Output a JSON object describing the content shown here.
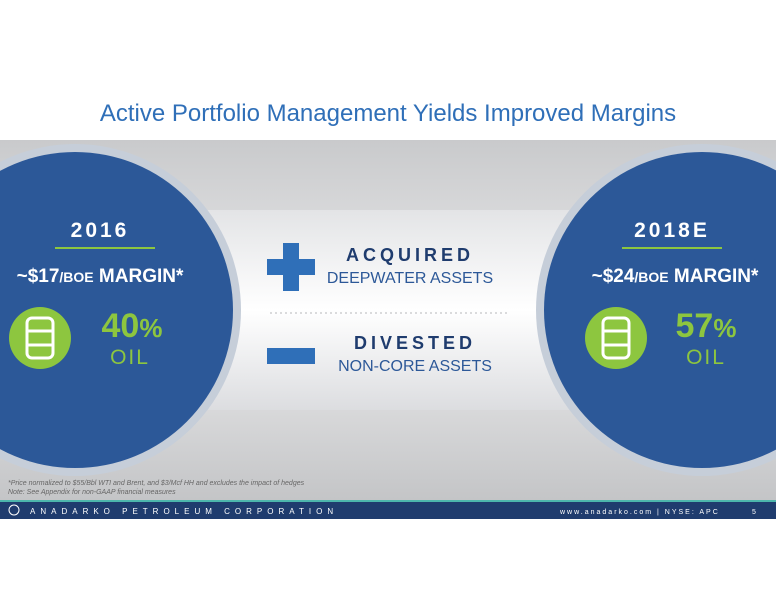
{
  "header": {
    "title": "Active Portfolio Management Yields Improved Margins"
  },
  "left": {
    "year": "2016",
    "margin": [
      "~$17",
      "/BOE",
      " MARGIN*"
    ],
    "percent": [
      "40",
      "%"
    ],
    "label": "OIL"
  },
  "middle": {
    "acquired": {
      "title": "ACQUIRED",
      "subtitle": "DEEPWATER ASSETS"
    },
    "divested": {
      "title": "DIVESTED",
      "subtitle": "NON-CORE ASSETS"
    }
  },
  "right": {
    "year": "2018E",
    "margin": [
      "~$24",
      "/BOE",
      " MARGIN*"
    ],
    "percent": [
      "57",
      "%"
    ],
    "label": "OIL"
  },
  "footnotes": [
    "*Price normalized to $55/Bbl WTI and Brent, and $3/Mcf HH and excludes the impact of hedges",
    "Note: See Appendix for non-GAAP financial measures"
  ],
  "footer": {
    "company": "ANADARKO PETROLEUM CORPORATION",
    "site": "www.anadarko.com | NYSE: APC",
    "page": "5"
  }
}
